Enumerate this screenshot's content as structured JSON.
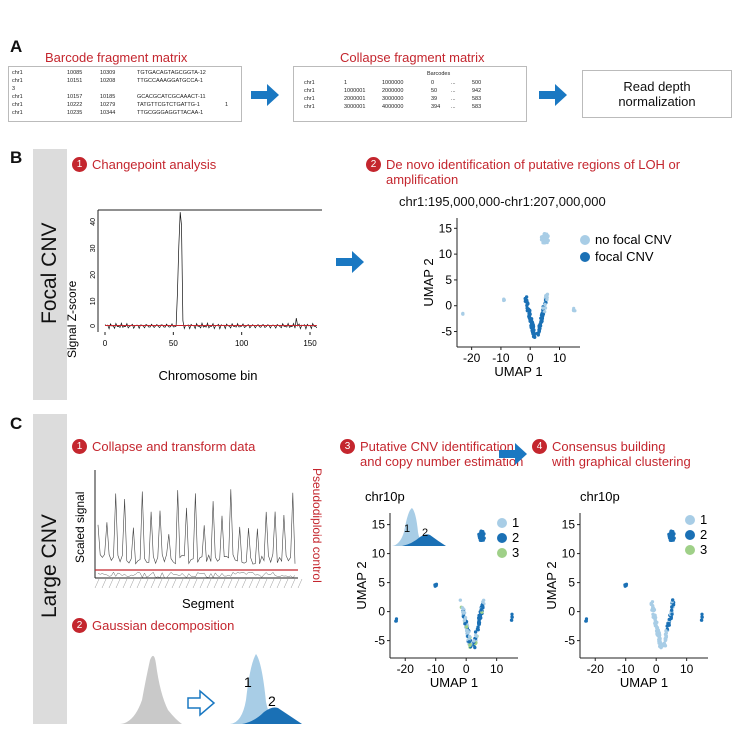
{
  "panelA": {
    "letter": "A",
    "barcode_title": "Barcode fragment matrix",
    "barcode_rows": [
      [
        "chr1",
        "10085",
        "10309",
        "TGTGACAGTAGCGGTA-12"
      ],
      [
        "chr1",
        "10151",
        "10208",
        "TTGCCAAAGGATGCCA-1"
      ],
      [
        "3",
        "",
        "",
        ""
      ],
      [
        "chr1",
        "10157",
        "10185",
        "GCACGCATCGCAAACT-11"
      ],
      [
        "chr1",
        "10222",
        "10279",
        "TATGTTCGTCTGATTG-1",
        "1"
      ],
      [
        "chr1",
        "10235",
        "10344",
        "TTGCGGGAGGTTACAA-1"
      ]
    ],
    "collapse_title": "Collapse fragment matrix",
    "collapse_header": "Barcodes",
    "collapse_rows": [
      [
        "chr1",
        "1",
        "1000000",
        "0",
        "...",
        "500"
      ],
      [
        "chr1",
        "1000001",
        "2000000",
        "50",
        "...",
        "942"
      ],
      [
        "chr1",
        "2000001",
        "3000000",
        "39",
        "...",
        "583"
      ],
      [
        "chr1",
        "3000001",
        "4000000",
        "394",
        "...",
        "583"
      ]
    ],
    "normalization_lines": [
      "Read depth",
      "normalization"
    ]
  },
  "panelB": {
    "letter": "B",
    "side_label": "Focal CNV",
    "step1_num": "1",
    "step1_label": "Changepoint analysis",
    "step2_num": "2",
    "step2_lines": [
      "De novo identification of putative regions of LOH or",
      "amplification"
    ],
    "region": "chr1:195,000,000-chr1:207,000,000",
    "line_chart": {
      "xlabel": "Chromosome bin",
      "ylabel": "Signal Z-score",
      "xticks": [
        "0",
        "50",
        "100",
        "150"
      ],
      "yticks": [
        "0",
        "10",
        "20",
        "30",
        "40"
      ]
    },
    "umap": {
      "xlabel": "UMAP 1",
      "ylabel": "UMAP 2",
      "xticks": [
        "-20",
        "-10",
        "0",
        "10"
      ],
      "yticks": [
        "15",
        "10",
        "5",
        "0",
        "-5"
      ],
      "legend": [
        {
          "label": "no focal CNV",
          "color": "#a8cde6"
        },
        {
          "label": "focal CNV",
          "color": "#1a70b5"
        }
      ]
    }
  },
  "panelC": {
    "letter": "C",
    "side_label": "Large CNV",
    "step1_num": "1",
    "step1_label": "Collapse and transform data",
    "step2_num": "2",
    "step2_label": "Gaussian decomposition",
    "step3_num": "3",
    "step3_lines": [
      "Putative CNV identification",
      "and copy number estimation"
    ],
    "step4_num": "4",
    "step4_lines": [
      "Consensus building",
      "with graphical clustering"
    ],
    "signal_chart": {
      "xlabel": "Segment",
      "ylabel": "Scaled signal",
      "control_label": "Pseudodiploid control"
    },
    "gauss_labels": [
      "1",
      "2"
    ],
    "umap3": {
      "title": "chr10p",
      "xlabel": "UMAP 1",
      "ylabel": "UMAP 2",
      "xticks": [
        "-20",
        "-10",
        "0",
        "10"
      ],
      "yticks": [
        "15",
        "10",
        "5",
        "0",
        "-5"
      ],
      "inset_labels": [
        "1",
        "2"
      ],
      "legend": [
        {
          "label": "1",
          "color": "#a8cde6"
        },
        {
          "label": "2",
          "color": "#1a70b5"
        },
        {
          "label": "3",
          "color": "#9fd088"
        }
      ]
    },
    "umap4": {
      "title": "chr10p",
      "xlabel": "UMAP 1",
      "ylabel": "UMAP 2",
      "xticks": [
        "-20",
        "-10",
        "0",
        "10"
      ],
      "yticks": [
        "15",
        "10",
        "5",
        "0",
        "-5"
      ],
      "legend": [
        {
          "label": "1",
          "color": "#a8cde6"
        },
        {
          "label": "2",
          "color": "#1a70b5"
        },
        {
          "label": "3",
          "color": "#9fd088"
        }
      ]
    }
  },
  "colors": {
    "accent_red": "#c4262e",
    "arrow_blue": "#1a78c2",
    "light_blue": "#a8cde6",
    "dark_blue": "#1a70b5",
    "green": "#9fd088",
    "side_gray": "#dcdcdc"
  }
}
